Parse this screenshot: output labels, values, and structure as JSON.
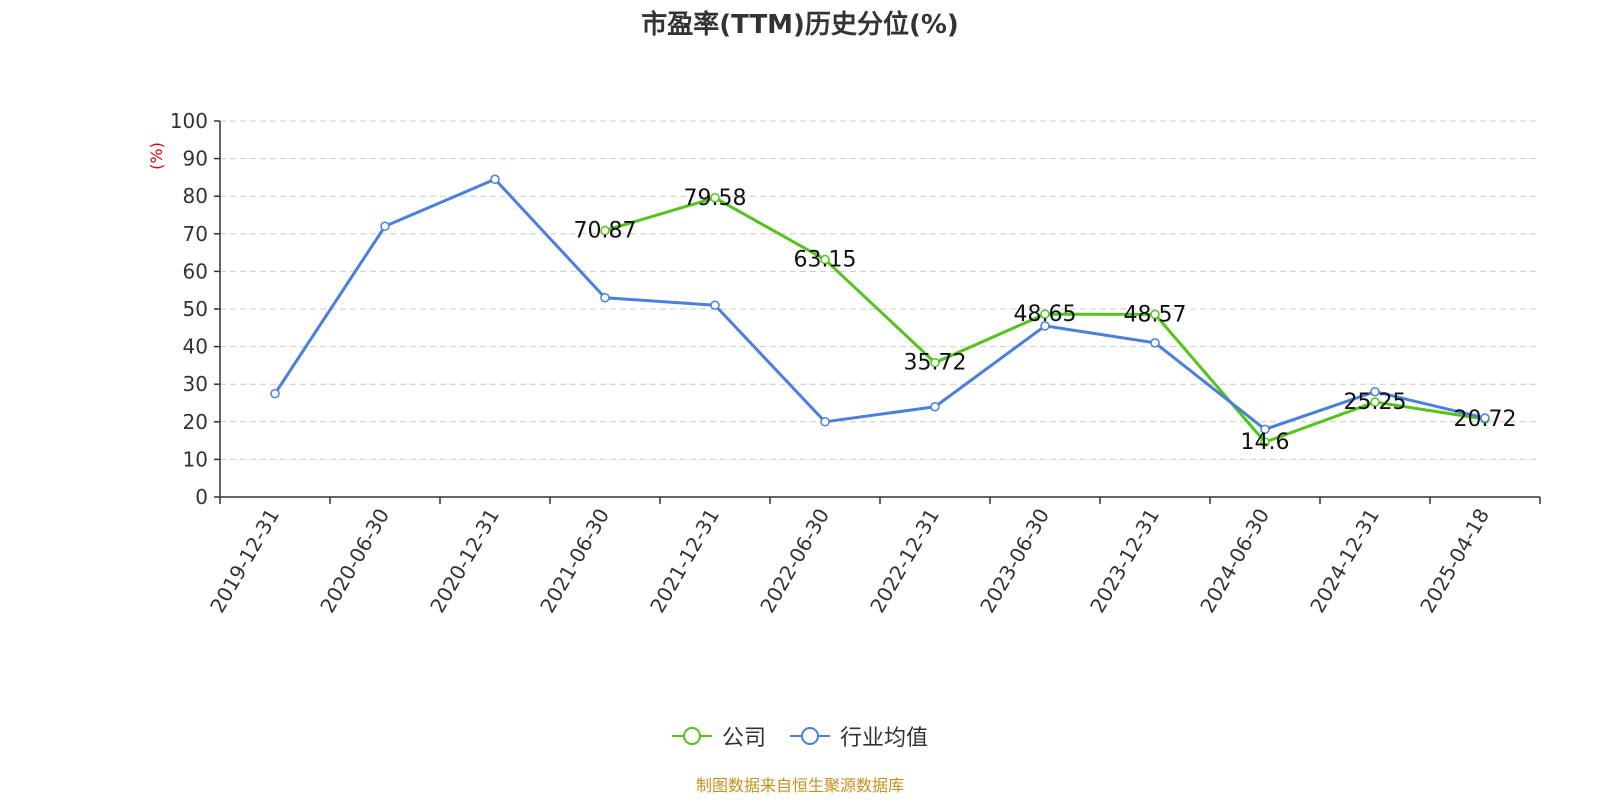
{
  "chart_data": {
    "type": "line",
    "title": "市盈率(TTM)历史分位(%)",
    "ylabel": "(%)",
    "ylim": [
      0,
      100
    ],
    "yticks": [
      0,
      10,
      20,
      30,
      40,
      50,
      60,
      70,
      80,
      90,
      100
    ],
    "grid": true,
    "legend_position": "bottom",
    "categories": [
      "2019-12-31",
      "2020-06-30",
      "2020-12-31",
      "2021-06-30",
      "2021-12-31",
      "2022-06-30",
      "2022-12-31",
      "2023-06-30",
      "2023-12-31",
      "2024-06-30",
      "2024-12-31",
      "2025-04-18"
    ],
    "series": [
      {
        "name": "公司",
        "color": "#52c41a",
        "values": [
          null,
          null,
          null,
          70.87,
          79.58,
          63.15,
          35.72,
          48.65,
          48.57,
          14.6,
          25.25,
          20.72
        ],
        "labels": [
          null,
          null,
          null,
          "70.87",
          "79.58",
          "63.15",
          "35.72",
          "48.65",
          "48.57",
          "14.6",
          "25.25",
          "20.72"
        ]
      },
      {
        "name": "行业均值",
        "color": "#4a7fdc",
        "values": [
          27.5,
          72,
          84.5,
          53,
          51,
          20,
          24,
          45.5,
          41,
          18,
          28,
          21
        ],
        "labels": null
      }
    ]
  },
  "source": "制图数据来自恒生聚源数据库"
}
